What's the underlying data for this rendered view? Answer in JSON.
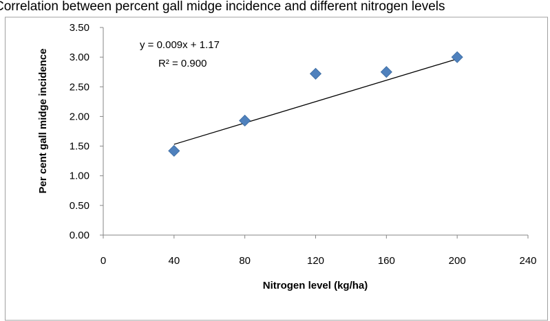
{
  "chart_data": {
    "type": "scatter",
    "title": "Correlation between percent gall midge incidence and different nitrogen levels",
    "xlabel": "Nitrogen level (kg/ha)",
    "ylabel": "Per cent gall midge incidence",
    "xlim": [
      0,
      240
    ],
    "ylim": [
      0,
      3.5
    ],
    "x_ticks": [
      "0",
      "40",
      "80",
      "120",
      "160",
      "200",
      "240"
    ],
    "y_ticks": [
      "0.00",
      "0.50",
      "1.00",
      "1.50",
      "2.00",
      "2.50",
      "3.00",
      "3.50"
    ],
    "series": [
      {
        "marker": "diamond",
        "color": "#4f81bd",
        "x": [
          40,
          80,
          120,
          160,
          200
        ],
        "y": [
          1.42,
          1.93,
          2.72,
          2.75,
          3.0
        ]
      }
    ],
    "trendline": {
      "type": "linear",
      "slope": 0.009,
      "intercept": 1.17,
      "equation": "y = 0.009x + 1.17",
      "r_squared": "R² = 0.900",
      "x_range": [
        40,
        200
      ],
      "color": "#000000"
    },
    "grid": false,
    "legend": "none"
  }
}
